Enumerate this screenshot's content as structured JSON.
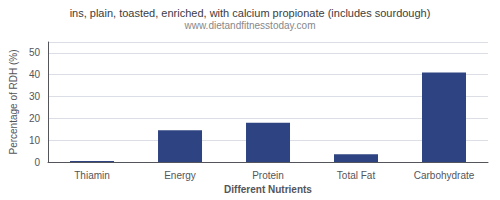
{
  "chart_data": {
    "type": "bar",
    "title": "ins, plain, toasted, enriched, with calcium propionate (includes sourdough)",
    "subtitle": "www.dietandfitnesstoday.com",
    "categories": [
      "Thiamin",
      "Energy",
      "Protein",
      "Total Fat",
      "Carbohydrate"
    ],
    "values": [
      0.5,
      14.5,
      18.0,
      3.5,
      41.0
    ],
    "color": "#2e4482",
    "xlabel": "Different Nutrients",
    "ylabel": "Percentage of RDH (%)",
    "ylim": [
      0,
      55
    ],
    "yticks": [
      0,
      10,
      20,
      30,
      40,
      50
    ],
    "grid": true
  }
}
